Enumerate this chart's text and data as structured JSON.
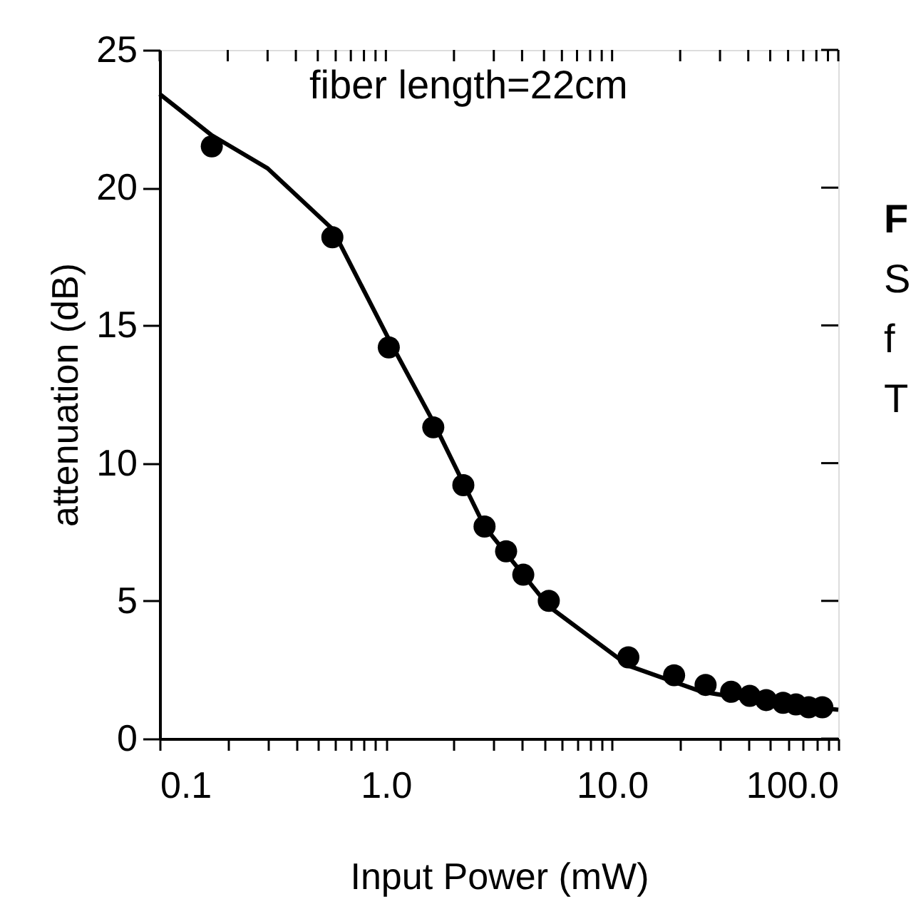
{
  "chart_data": {
    "type": "scatter",
    "xlabel": "Input Power (mW)",
    "ylabel": "attenuation (dB)",
    "annotations": [
      "fiber length=22cm",
      "F",
      "S",
      "f",
      "T"
    ],
    "log": "x",
    "xlim": [
      0.1,
      100
    ],
    "ylim": [
      0,
      25
    ],
    "xticks": [
      {
        "value": 0.1,
        "label": "0.1"
      },
      {
        "value": 0.2,
        "label": null
      },
      {
        "value": 0.3,
        "label": null
      },
      {
        "value": 0.4,
        "label": null
      },
      {
        "value": 0.5,
        "label": null
      },
      {
        "value": 0.6,
        "label": null
      },
      {
        "value": 0.7,
        "label": null
      },
      {
        "value": 0.8,
        "label": null
      },
      {
        "value": 0.9,
        "label": null
      },
      {
        "value": 1,
        "label": "1.0"
      },
      {
        "value": 2,
        "label": null
      },
      {
        "value": 3,
        "label": null
      },
      {
        "value": 4,
        "label": null
      },
      {
        "value": 5,
        "label": null
      },
      {
        "value": 6,
        "label": null
      },
      {
        "value": 7,
        "label": null
      },
      {
        "value": 8,
        "label": null
      },
      {
        "value": 9,
        "label": null
      },
      {
        "value": 10,
        "label": "10.0"
      },
      {
        "value": 20,
        "label": null
      },
      {
        "value": 30,
        "label": null
      },
      {
        "value": 40,
        "label": null
      },
      {
        "value": 50,
        "label": null
      },
      {
        "value": 60,
        "label": null
      },
      {
        "value": 70,
        "label": null
      },
      {
        "value": 80,
        "label": null
      },
      {
        "value": 90,
        "label": null
      },
      {
        "value": 100,
        "label": "100.0"
      }
    ],
    "yticks": [
      0,
      5,
      10,
      15,
      20,
      25
    ],
    "grid": false,
    "legend": false,
    "series": [
      {
        "marker": "circle",
        "color": "#000000",
        "x": [
          0.17,
          0.58,
          1.03,
          1.62,
          2.2,
          2.73,
          3.4,
          4.05,
          5.25,
          11.8,
          18.8,
          25.9,
          33.6,
          40.6,
          48,
          57,
          65,
          74,
          85
        ],
        "values": [
          21.5,
          18.2,
          14.2,
          11.3,
          9.2,
          7.7,
          6.8,
          5.95,
          5.0,
          2.95,
          2.3,
          1.95,
          1.7,
          1.55,
          1.4,
          1.3,
          1.24,
          1.14,
          1.14
        ]
      },
      {
        "type": "line",
        "line_style": "solid",
        "color": "#000000",
        "x": [
          0.1,
          0.17,
          0.3,
          0.58,
          1.03,
          1.62,
          2.73,
          5.25,
          11.8,
          25,
          50,
          100
        ],
        "values": [
          23.4,
          21.9,
          20.7,
          18.5,
          14.5,
          11.5,
          7.7,
          4.8,
          2.65,
          1.7,
          1.3,
          1.05
        ]
      }
    ]
  }
}
